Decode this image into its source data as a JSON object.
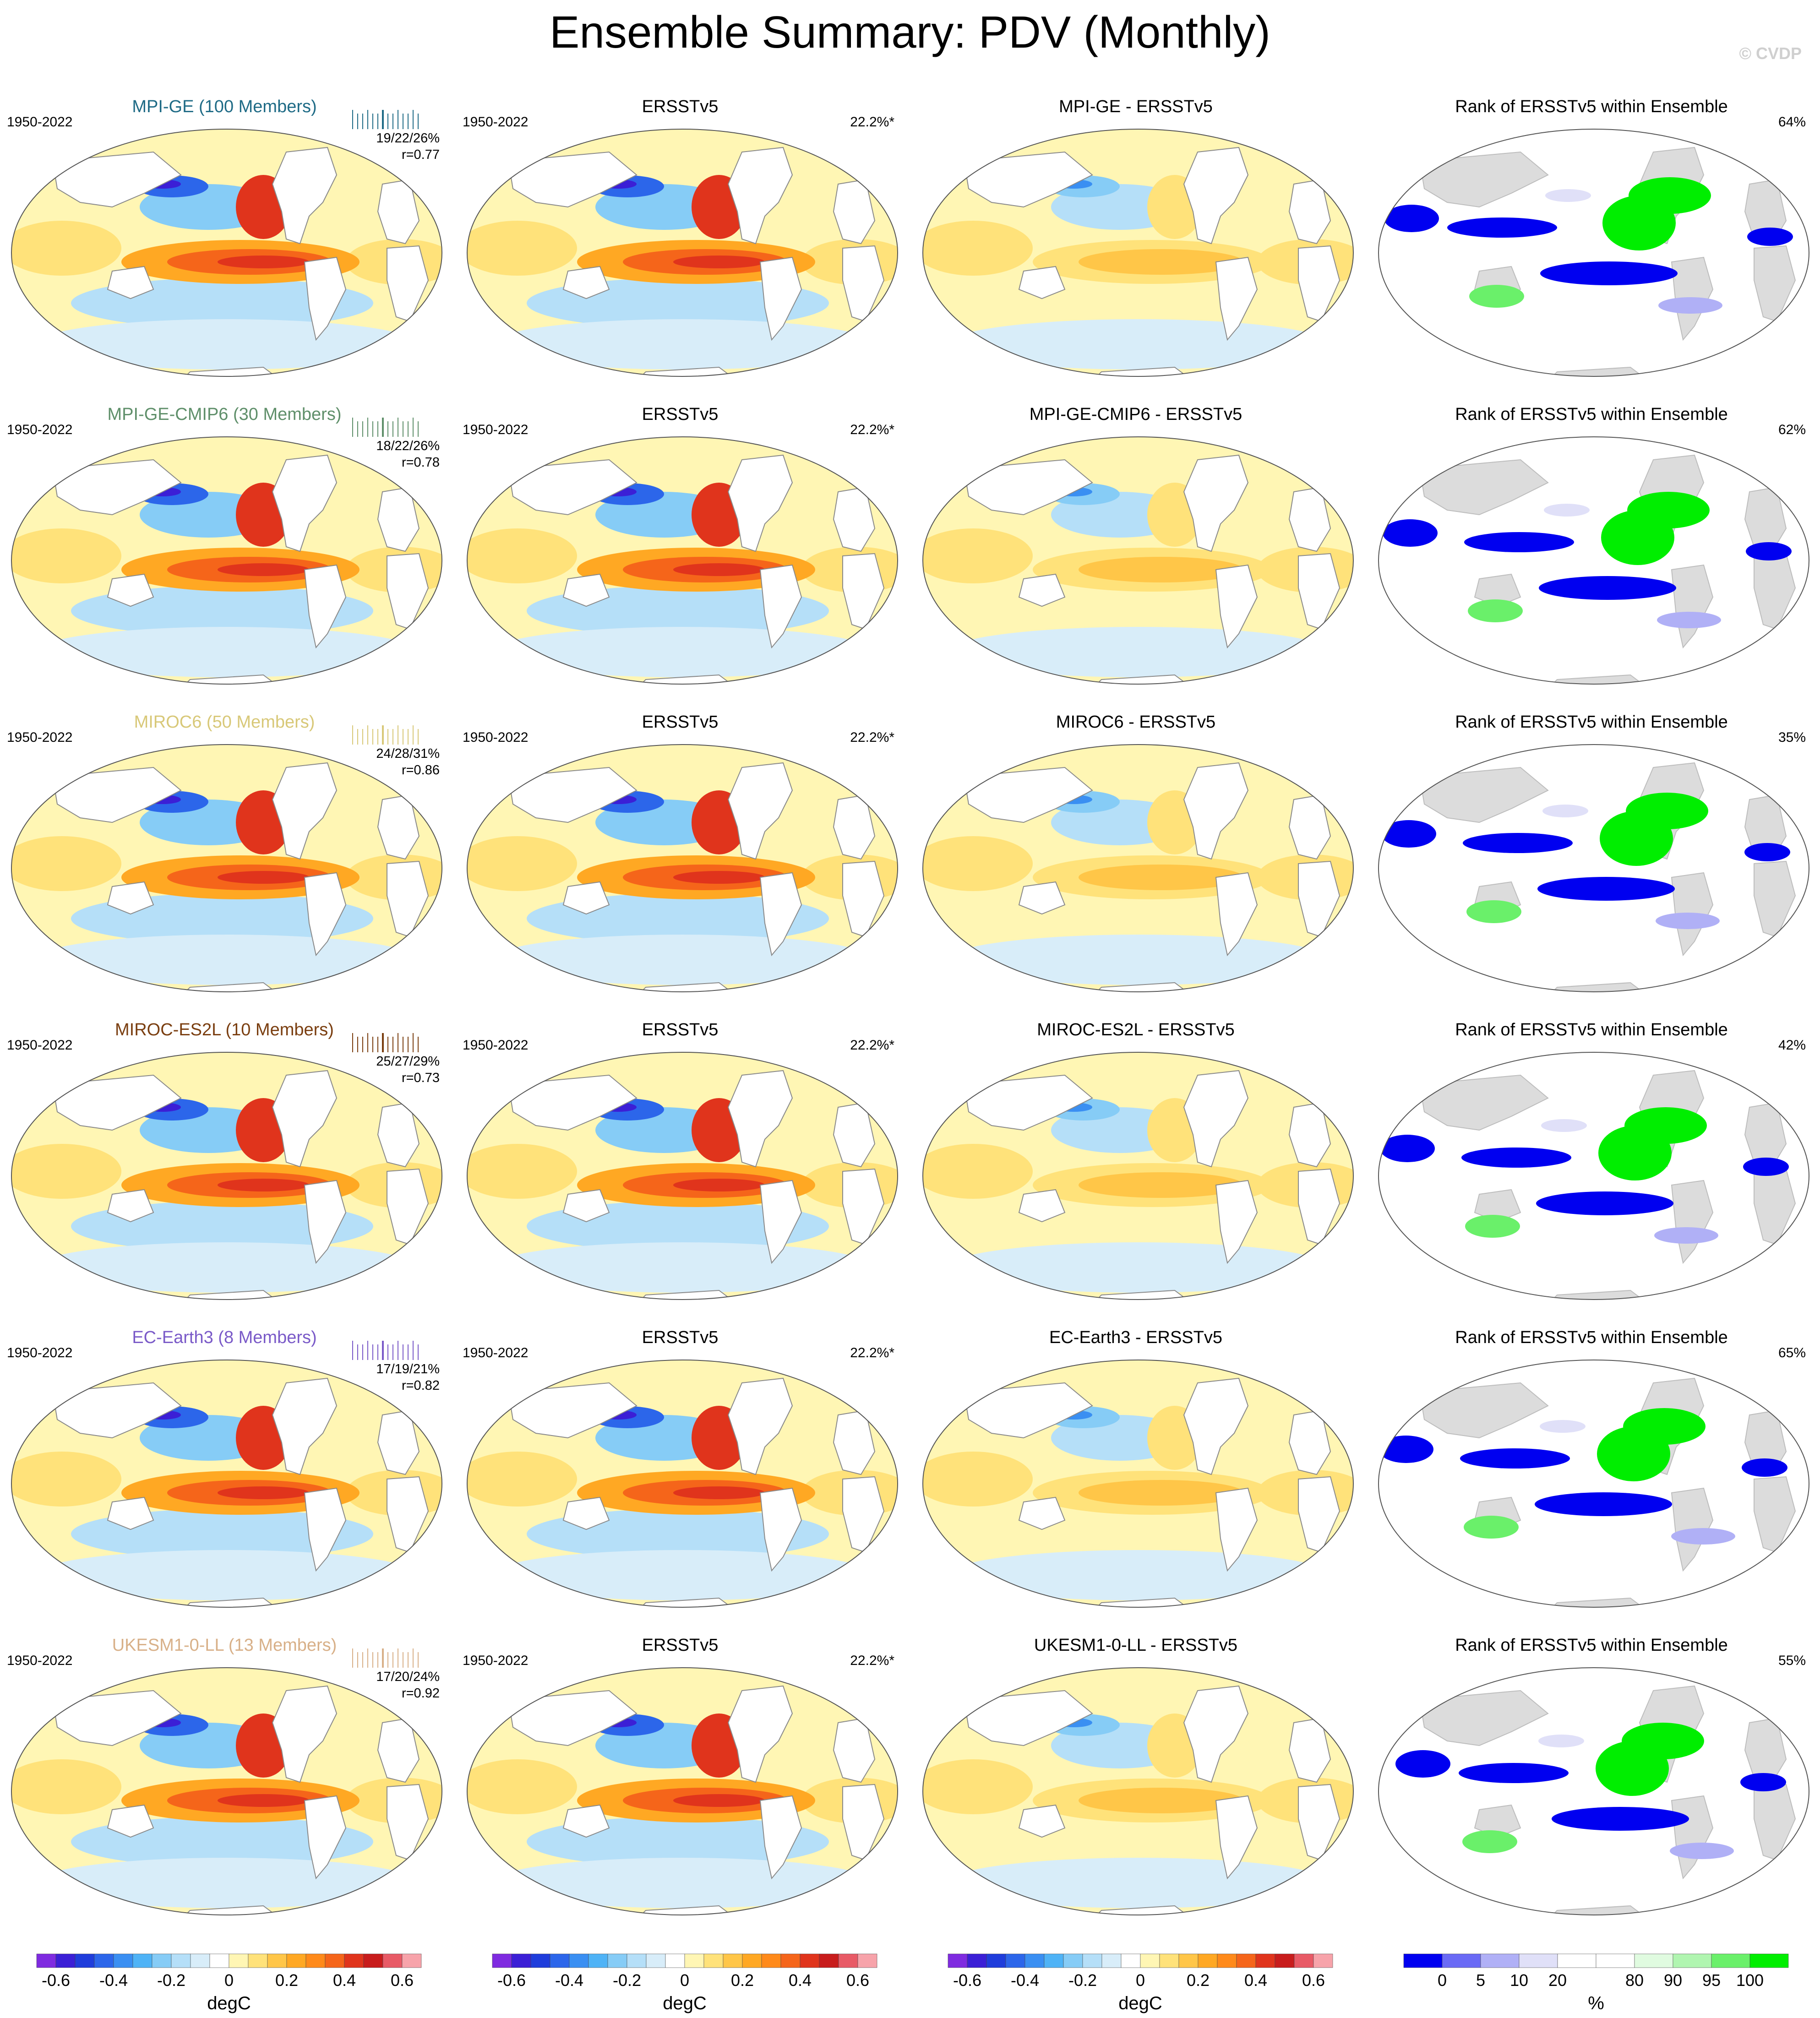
{
  "title": "Ensemble Summary: PDV (Monthly)",
  "copyright": "© CVDP",
  "period": "1950-2022",
  "obs_name": "ERSSTv5",
  "obs_pct": "22.2%*",
  "rank_title": "Rank of ERSSTv5 within Ensemble",
  "rows": [
    {
      "model": "MPI-GE (100 Members)",
      "color": "#1f6b86",
      "stats": "19/22/26%",
      "r": "r=0.77",
      "diff_title": "MPI-GE - ERSSTv5",
      "rank_pct": "64%"
    },
    {
      "model": "MPI-GE-CMIP6 (30 Members)",
      "color": "#5f8f6a",
      "stats": "18/22/26%",
      "r": "r=0.78",
      "diff_title": "MPI-GE-CMIP6 - ERSSTv5",
      "rank_pct": "62%"
    },
    {
      "model": "MIROC6 (50 Members)",
      "color": "#d8c878",
      "stats": "24/28/31%",
      "r": "r=0.86",
      "diff_title": "MIROC6 - ERSSTv5",
      "rank_pct": "35%"
    },
    {
      "model": "MIROC-ES2L (10 Members)",
      "color": "#7a3e10",
      "stats": "25/27/29%",
      "r": "r=0.73",
      "diff_title": "MIROC-ES2L - ERSSTv5",
      "rank_pct": "42%"
    },
    {
      "model": "EC-Earth3 (8 Members)",
      "color": "#7a5ac8",
      "stats": "17/19/21%",
      "r": "r=0.82",
      "diff_title": "EC-Earth3 - ERSSTv5",
      "rank_pct": "65%"
    },
    {
      "model": "UKESM1-0-LL (13 Members)",
      "color": "#d8b088",
      "stats": "17/20/24%",
      "r": "r=0.92",
      "diff_title": "UKESM1-0-LL - ERSSTv5",
      "rank_pct": "55%"
    }
  ],
  "colorbar_temp": {
    "unit": "degC",
    "ticks": [
      "-0.6",
      "-0.4",
      "-0.2",
      "0",
      "0.2",
      "0.4",
      "0.6"
    ],
    "colors": [
      "#7f2be0",
      "#3b1fd6",
      "#1f3ddb",
      "#2c66ea",
      "#3a8ff2",
      "#4fb3f6",
      "#86ccf6",
      "#b5dff8",
      "#d8edf9",
      "#ffffff",
      "#fff6b4",
      "#ffe27a",
      "#ffc648",
      "#ffa823",
      "#ff8a1a",
      "#f5651a",
      "#e0341c",
      "#c81c1c",
      "#e85a66",
      "#f7a3aa"
    ]
  },
  "colorbar_rank": {
    "unit": "%",
    "ticks": [
      "0",
      "5",
      "10",
      "20",
      "80",
      "90",
      "95",
      "100"
    ],
    "colors": [
      "#0000f0",
      "#6a6af5",
      "#b0b0f6",
      "#e0e0f8",
      "#ffffff",
      "#ffffff",
      "#e0fbe0",
      "#b0f5b0",
      "#6af06a",
      "#00ee00"
    ]
  },
  "chart_data": [
    {
      "type": "heatmap",
      "description": "PDV SST regression maps per model ensemble mean, ERSSTv5 observations, model minus observations difference, and rank of observations within ensemble",
      "title": "Ensemble Summary: PDV (Monthly)",
      "colorbar_unit": "degC",
      "colorbar_range": [
        -0.7,
        0.7
      ],
      "rank_unit": "%",
      "rank_range": [
        0,
        100
      ]
    }
  ]
}
